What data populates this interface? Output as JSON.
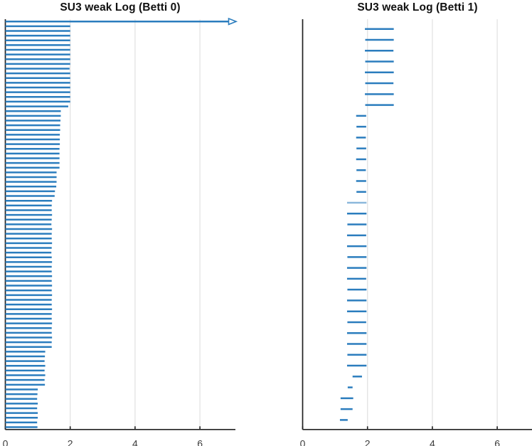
{
  "figure": {
    "background": "#ffffff",
    "bar_color": "#2b7dbe",
    "axis_color": "#212121",
    "grid_color": "#e3e3e3",
    "tick_label_color": "#3d3d3d",
    "title_color": "#111111"
  },
  "chart_data": [
    {
      "type": "barcode",
      "title": "SU3 weak Log (Betti 0)",
      "xlabel": "",
      "ylabel": "",
      "xticks": [
        0,
        2,
        4,
        6
      ],
      "xlim": [
        0,
        7.09
      ],
      "grid": "vertical-gridlines",
      "legend": "none",
      "note": "first bar is infinite, drawn with open arrowhead at right edge",
      "bars": [
        [
          0,
          "inf"
        ],
        [
          0,
          2
        ],
        [
          0,
          2
        ],
        [
          0,
          2
        ],
        [
          0,
          2
        ],
        [
          0,
          2
        ],
        [
          0,
          2
        ],
        [
          0,
          2
        ],
        [
          0,
          2
        ],
        [
          0,
          2
        ],
        [
          0,
          1.98
        ],
        [
          0,
          2
        ],
        [
          0,
          2
        ],
        [
          0,
          2
        ],
        [
          0,
          2
        ],
        [
          0,
          2
        ],
        [
          0,
          2
        ],
        [
          0,
          2
        ],
        [
          0,
          1.94
        ],
        [
          0,
          1.71
        ],
        [
          0,
          1.71
        ],
        [
          0,
          1.7
        ],
        [
          0,
          1.69
        ],
        [
          0,
          1.69
        ],
        [
          0,
          1.68
        ],
        [
          0,
          1.68
        ],
        [
          0,
          1.68
        ],
        [
          0,
          1.67
        ],
        [
          0,
          1.67
        ],
        [
          0,
          1.67
        ],
        [
          0,
          1.67
        ],
        [
          0,
          1.67
        ],
        [
          0,
          1.58
        ],
        [
          0,
          1.58
        ],
        [
          0,
          1.58
        ],
        [
          0,
          1.57
        ],
        [
          0,
          1.53
        ],
        [
          0,
          1.52
        ],
        [
          0,
          1.44
        ],
        [
          0,
          1.43
        ],
        [
          0,
          1.43
        ],
        [
          0,
          1.44
        ],
        [
          0,
          1.43
        ],
        [
          0,
          1.42
        ],
        [
          0,
          1.44
        ],
        [
          0,
          1.43
        ],
        [
          0,
          1.43
        ],
        [
          0,
          1.44
        ],
        [
          0,
          1.43
        ],
        [
          0,
          1.42
        ],
        [
          0,
          1.43
        ],
        [
          0,
          1.44
        ],
        [
          0,
          1.43
        ],
        [
          0,
          1.43
        ],
        [
          0,
          1.44
        ],
        [
          0,
          1.43
        ],
        [
          0,
          1.44
        ],
        [
          0,
          1.43
        ],
        [
          0,
          1.44
        ],
        [
          0,
          1.43
        ],
        [
          0,
          1.43
        ],
        [
          0,
          1.44
        ],
        [
          0,
          1.43
        ],
        [
          0,
          1.43
        ],
        [
          0,
          1.44
        ],
        [
          0,
          1.43
        ],
        [
          0,
          1.43
        ],
        [
          0,
          1.44
        ],
        [
          0,
          1.43
        ],
        [
          0,
          1.43
        ],
        [
          0,
          1.23
        ],
        [
          0,
          1.22
        ],
        [
          0,
          1.21
        ],
        [
          0,
          1.23
        ],
        [
          0,
          1.21
        ],
        [
          0,
          1.23
        ],
        [
          0,
          1.21
        ],
        [
          0,
          1.22
        ],
        [
          0,
          1.0
        ],
        [
          0,
          0.99
        ],
        [
          0,
          0.98
        ],
        [
          0,
          1.0
        ],
        [
          0,
          0.98
        ],
        [
          0,
          1.0
        ],
        [
          0,
          1.0
        ],
        [
          0,
          0.98
        ],
        [
          0,
          0.99
        ]
      ]
    },
    {
      "type": "barcode",
      "title": "SU3 weak Log (Betti 1)",
      "xlabel": "",
      "ylabel": "",
      "xticks": [
        0,
        2,
        4,
        6
      ],
      "xlim": [
        0,
        7.07
      ],
      "grid": "vertical-gridlines",
      "legend": "none",
      "note": "bars are [birth, death]; optional third value is opacity of a faint bar",
      "bars": [
        [
          1.92,
          2.81
        ],
        [
          1.93,
          2.81
        ],
        [
          1.92,
          2.8
        ],
        [
          1.93,
          2.81
        ],
        [
          1.92,
          2.81
        ],
        [
          1.93,
          2.8
        ],
        [
          1.92,
          2.81
        ],
        [
          1.93,
          2.81
        ],
        [
          1.65,
          1.96
        ],
        [
          1.66,
          1.96
        ],
        [
          1.65,
          1.95
        ],
        [
          1.66,
          1.96
        ],
        [
          1.65,
          1.96
        ],
        [
          1.66,
          1.95
        ],
        [
          1.65,
          1.96
        ],
        [
          1.66,
          1.96
        ],
        [
          1.37,
          1.97,
          0.55
        ],
        [
          1.37,
          1.97
        ],
        [
          1.38,
          1.97
        ],
        [
          1.37,
          1.96
        ],
        [
          1.37,
          1.97
        ],
        [
          1.38,
          1.97
        ],
        [
          1.37,
          1.97
        ],
        [
          1.37,
          1.96
        ],
        [
          1.38,
          1.97
        ],
        [
          1.37,
          1.97
        ],
        [
          1.37,
          1.97
        ],
        [
          1.38,
          1.96
        ],
        [
          1.37,
          1.97
        ],
        [
          1.37,
          1.97
        ],
        [
          1.38,
          1.97
        ],
        [
          1.37,
          1.97
        ],
        [
          1.54,
          1.83
        ],
        [
          1.39,
          1.54
        ],
        [
          1.17,
          1.56
        ],
        [
          1.17,
          1.54
        ],
        [
          1.15,
          1.39
        ]
      ]
    }
  ]
}
